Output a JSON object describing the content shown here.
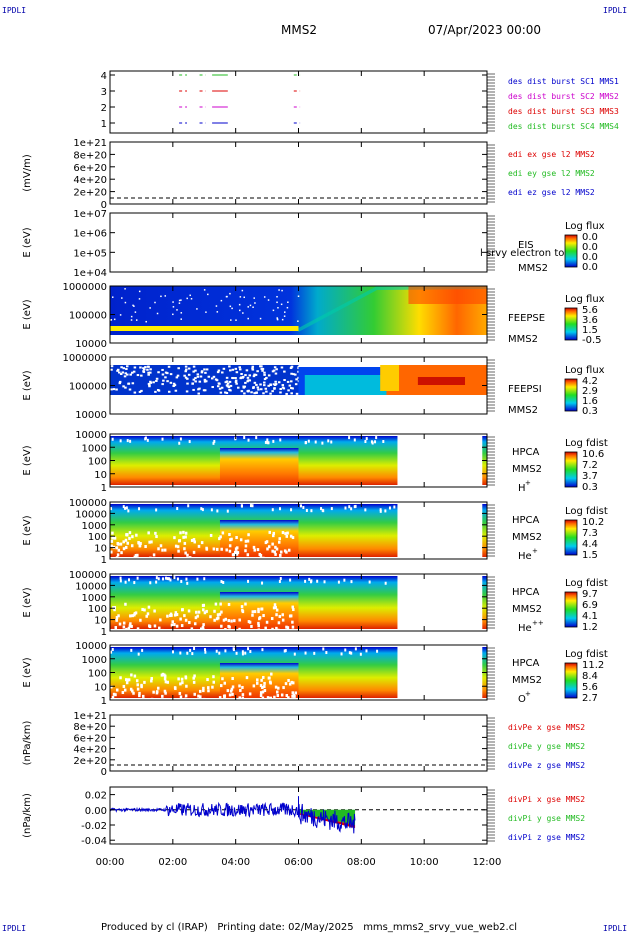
{
  "corner": {
    "tl": "IPDLI",
    "tr": "IPDLI",
    "bl": "IPDLI",
    "br": "IPDLI"
  },
  "header": {
    "spacecraft": "MMS2",
    "date": "07/Apr/2023 00:00"
  },
  "footer": {
    "text": "Produced by cl (IRAP)   Printing date: 02/May/2025   mms_mms2_srvy_vue_web2.cl"
  },
  "colors": {
    "red": "#dd0000",
    "green": "#22bb22",
    "blue": "#0000cc",
    "magenta": "#cc00cc"
  },
  "chart_data": {
    "type": "heatmap",
    "x_axis": {
      "range": [
        "00:00",
        "12:00"
      ],
      "ticks": [
        "00:00",
        "02:00",
        "04:00",
        "06:00",
        "08:00",
        "10:00",
        "12:00"
      ]
    },
    "panels": [
      {
        "id": "burst",
        "type": "line",
        "y_ticks": [
          "4",
          "3",
          "2",
          "1"
        ],
        "legend": [
          {
            "text": "des dist burst SC1 MMS1",
            "color": "#0000cc"
          },
          {
            "text": "des dist burst SC2 MMS2",
            "color": "#cc00cc"
          },
          {
            "text": "des dist burst SC3 MMS3",
            "color": "#dd0000"
          },
          {
            "text": "des dist burst SC4 MMS4",
            "color": "#22bb22"
          }
        ],
        "intervals_hours": [
          [
            2.2,
            2.45
          ],
          [
            2.85,
            3.05
          ],
          [
            3.25,
            3.75
          ],
          [
            5.85,
            6.05
          ]
        ]
      },
      {
        "id": "edi",
        "type": "line",
        "ylabel": "(mV/m)",
        "y_ticks": [
          "1e+21",
          "8e+20",
          "6e+20",
          "4e+20",
          "2e+20",
          "0"
        ],
        "legend": [
          {
            "text": "edi ex gse l2 MMS2",
            "color": "#dd0000"
          },
          {
            "text": "edi ey gse l2 MMS2",
            "color": "#22bb22"
          },
          {
            "text": "edi ez gse l2 MMS2",
            "color": "#0000cc"
          }
        ]
      },
      {
        "id": "eis",
        "type": "heatmap",
        "ylabel": "E (eV)",
        "y_ticks": [
          "1e+07",
          "1e+06",
          "1e+05",
          "1e+04"
        ],
        "side": [
          "EIS",
          "MMS2"
        ],
        "overlay": "l srvy electron to",
        "cbar_title": "Log flux",
        "cbar_ticks": [
          "0.0",
          "0.0",
          "0.0",
          "0.0"
        ]
      },
      {
        "id": "feepse",
        "type": "heatmap",
        "ylabel": "E (eV)",
        "y_ticks": [
          "1000000",
          "100000",
          "10000"
        ],
        "side": [
          "FEEPSE",
          "MMS2"
        ],
        "cbar_title": "Log flux",
        "cbar_ticks": [
          "5.6",
          "3.6",
          "1.5",
          "-0.5"
        ]
      },
      {
        "id": "feepsi",
        "type": "heatmap",
        "ylabel": "E (eV)",
        "y_ticks": [
          "1000000",
          "100000",
          "10000"
        ],
        "side": [
          "FEEPSI",
          "MMS2"
        ],
        "cbar_title": "Log flux",
        "cbar_ticks": [
          "4.2",
          "2.9",
          "1.6",
          "0.3"
        ]
      },
      {
        "id": "hpca_h",
        "type": "heatmap",
        "ylabel": "E (eV)",
        "y_ticks": [
          "10000",
          "1000",
          "100",
          "10",
          "1"
        ],
        "side": [
          "HPCA",
          "MMS2"
        ],
        "species": "H",
        "sup": "+",
        "cbar_title": "Log fdist",
        "cbar_ticks": [
          "10.6",
          "7.2",
          "3.7",
          "0.3"
        ]
      },
      {
        "id": "hpca_he",
        "type": "heatmap",
        "ylabel": "E (eV)",
        "y_ticks": [
          "100000",
          "10000",
          "1000",
          "100",
          "10",
          "1"
        ],
        "side": [
          "HPCA",
          "MMS2"
        ],
        "species": "He",
        "sup": "+",
        "cbar_title": "Log fdist",
        "cbar_ticks": [
          "10.2",
          "7.3",
          "4.4",
          "1.5"
        ]
      },
      {
        "id": "hpca_hepp",
        "type": "heatmap",
        "ylabel": "E (eV)",
        "y_ticks": [
          "100000",
          "10000",
          "1000",
          "100",
          "10",
          "1"
        ],
        "side": [
          "HPCA",
          "MMS2"
        ],
        "species": "He",
        "sup": "++",
        "cbar_title": "Log fdist",
        "cbar_ticks": [
          "9.7",
          "6.9",
          "4.1",
          "1.2"
        ]
      },
      {
        "id": "hpca_o",
        "type": "heatmap",
        "ylabel": "E (eV)",
        "y_ticks": [
          "10000",
          "1000",
          "100",
          "10",
          "1"
        ],
        "side": [
          "HPCA",
          "MMS2"
        ],
        "species": "O",
        "sup": "+",
        "cbar_title": "Log fdist",
        "cbar_ticks": [
          "11.2",
          "8.4",
          "5.6",
          "2.7"
        ]
      },
      {
        "id": "divpe",
        "type": "line",
        "ylabel": "(nPa/km)",
        "y_ticks": [
          "1e+21",
          "8e+20",
          "6e+20",
          "4e+20",
          "2e+20",
          "0"
        ],
        "legend": [
          {
            "text": "divPe x gse MMS2",
            "color": "#dd0000"
          },
          {
            "text": "divPe y gse MMS2",
            "color": "#22bb22"
          },
          {
            "text": "divPe z gse MMS2",
            "color": "#0000cc"
          }
        ]
      },
      {
        "id": "divpi",
        "type": "line",
        "ylabel": "(nPa/km)",
        "y_ticks": [
          "0.02",
          "0.00",
          "-0.02",
          "-0.04"
        ],
        "ylim": [
          -0.045,
          0.03
        ],
        "legend": [
          {
            "text": "divPi x gse MMS2",
            "color": "#dd0000"
          },
          {
            "text": "divPi y gse MMS2",
            "color": "#22bb22"
          },
          {
            "text": "divPi z gse MMS2",
            "color": "#0000cc"
          }
        ]
      }
    ]
  }
}
